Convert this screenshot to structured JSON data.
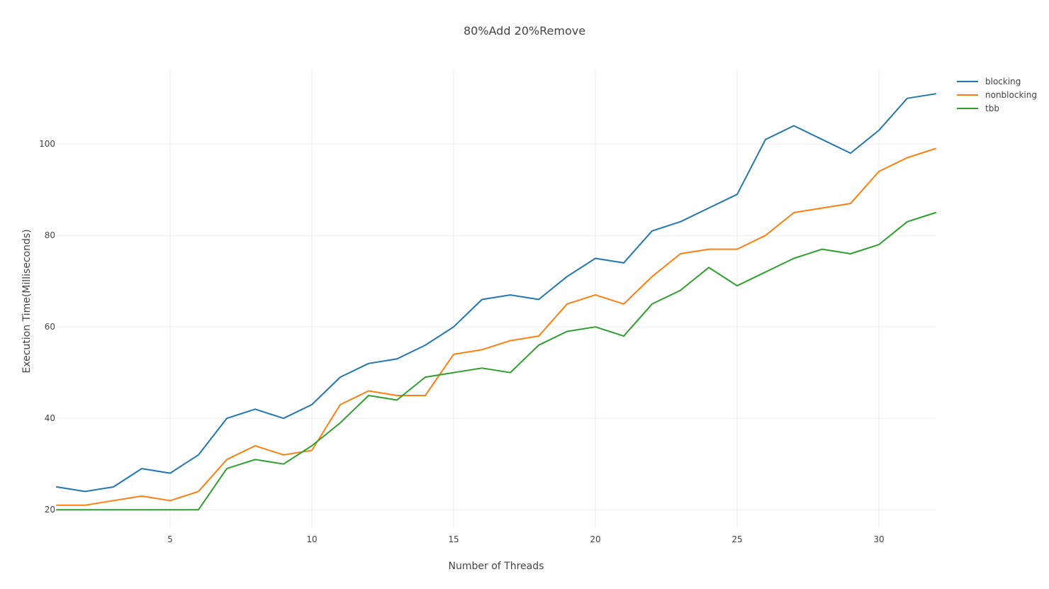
{
  "chart_data": {
    "type": "line",
    "title": "80%Add 20%Remove",
    "xlabel": "Number of Threads",
    "ylabel": "Execution Time(Milliseconds)",
    "xlim": [
      1,
      32
    ],
    "ylim": [
      16,
      116
    ],
    "x_ticks": [
      5,
      10,
      15,
      20,
      25,
      30
    ],
    "y_ticks": [
      20,
      40,
      60,
      80,
      100
    ],
    "grid": true,
    "legend_position": "top-right",
    "x": [
      1,
      2,
      3,
      4,
      5,
      6,
      7,
      8,
      9,
      10,
      11,
      12,
      13,
      14,
      15,
      16,
      17,
      18,
      19,
      20,
      21,
      22,
      23,
      24,
      25,
      26,
      27,
      28,
      29,
      30,
      31,
      32
    ],
    "series": [
      {
        "name": "blocking",
        "color": "#1f77b4",
        "values": [
          25,
          24,
          25,
          29,
          28,
          32,
          40,
          42,
          40,
          43,
          49,
          52,
          53,
          56,
          60,
          66,
          67,
          66,
          71,
          75,
          74,
          81,
          83,
          86,
          89,
          101,
          104,
          101,
          98,
          103,
          110,
          111
        ]
      },
      {
        "name": " nonblocking",
        "color": "#ff7f0e",
        "values": [
          21,
          21,
          22,
          23,
          22,
          24,
          31,
          34,
          32,
          33,
          43,
          46,
          45,
          45,
          54,
          55,
          57,
          58,
          65,
          67,
          65,
          71,
          76,
          77,
          77,
          80,
          85,
          86,
          87,
          94,
          97,
          99
        ]
      },
      {
        "name": "tbb",
        "color": "#2ca02c",
        "values": [
          20,
          20,
          20,
          20,
          20,
          20,
          29,
          31,
          30,
          34,
          39,
          45,
          44,
          49,
          50,
          51,
          50,
          56,
          59,
          60,
          58,
          65,
          68,
          73,
          69,
          72,
          75,
          77,
          76,
          78,
          83,
          85
        ]
      }
    ]
  }
}
